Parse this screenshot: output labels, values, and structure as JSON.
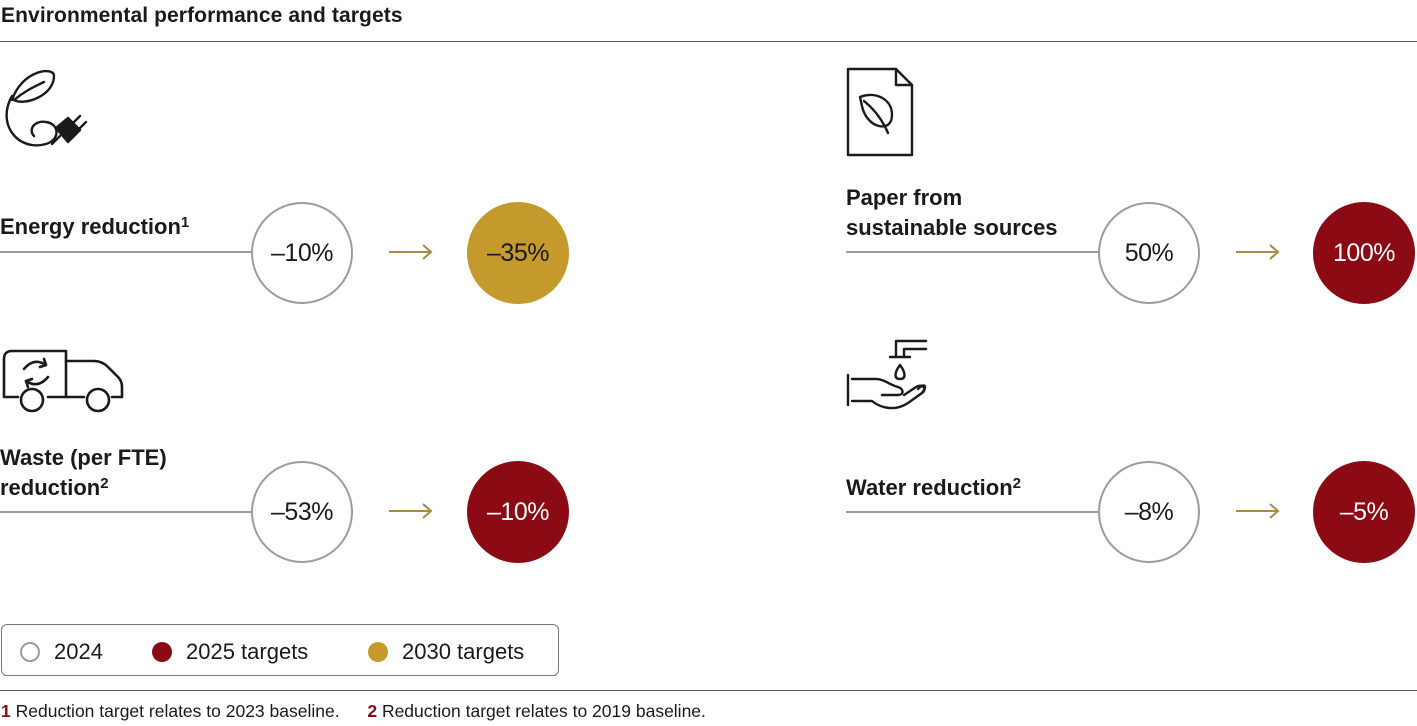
{
  "title": "Environmental performance and targets",
  "colors": {
    "target_2025": "#8b0a14",
    "target_2030": "#c49a2c",
    "actual_border": "#9c9c9c",
    "arrow": "#a88a45",
    "footnote_number": "#8b0a14"
  },
  "metrics": {
    "energy": {
      "icon": "leaf-plug-icon",
      "label": "Energy reduction",
      "footnote": "1",
      "actual_2024": "–10%",
      "target_value": "–35%",
      "target_year": "2030"
    },
    "waste": {
      "icon": "recycling-truck-icon",
      "label_line1": "Waste (per FTE)",
      "label_line2": "reduction",
      "footnote": "2",
      "actual_2024": "–53%",
      "target_value": "–10%",
      "target_year": "2025"
    },
    "paper": {
      "icon": "leaf-document-icon",
      "label_line1": "Paper from",
      "label_line2": "sustainable sources",
      "actual_2024": "50%",
      "target_value": "100%",
      "target_year": "2025"
    },
    "water": {
      "icon": "faucet-hand-icon",
      "label": "Water reduction",
      "footnote": "2",
      "actual_2024": "–8%",
      "target_value": "–5%",
      "target_year": "2025"
    }
  },
  "legend": {
    "actual": "2024",
    "target_2025": "2025 targets",
    "target_2030": "2030 targets"
  },
  "footnotes": [
    {
      "number": "1",
      "text": "Reduction target relates to 2023 baseline."
    },
    {
      "number": "2",
      "text": "Reduction target relates to 2019 baseline."
    }
  ]
}
